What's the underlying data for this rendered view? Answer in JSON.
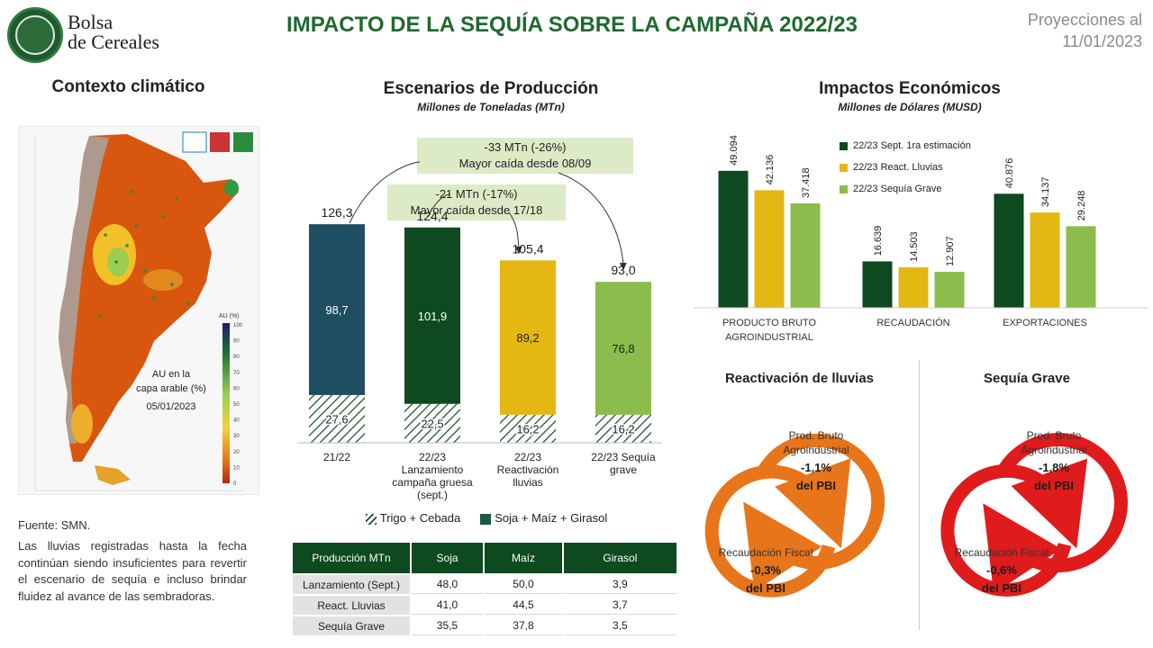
{
  "header": {
    "logo_line1": "Bolsa",
    "logo_line2": "de Cereales",
    "title": "IMPACTO DE LA SEQUÍA SOBRE LA CAMPAÑA 2022/23",
    "projection_line1": "Proyecciones al",
    "projection_line2": "11/01/2023"
  },
  "climate": {
    "title": "Contexto climático",
    "map_legend_title": "AU (%)",
    "map_label_line1": "AU en la",
    "map_label_line2": "capa arable (%)",
    "map_label_date": "05/01/2023",
    "map_scale_ticks": [
      "100",
      "90",
      "80",
      "70",
      "60",
      "50",
      "40",
      "30",
      "20",
      "10",
      "0"
    ],
    "source": "Fuente: SMN.",
    "text": "Las lluvias registradas hasta la fecha continúan siendo insuficientes para revertir el escenario de sequía e incluso brindar fluidez al avance de las sembradoras."
  },
  "production": {
    "title": "Escenarios de Producción",
    "subtitle": "Millones de Toneladas (MTn)",
    "callout1_line1": "-33 MTn (-26%)",
    "callout1_line2": "Mayor caída desde 08/09",
    "callout2_line1": "-21 MTn (-17%)",
    "callout2_line2": "Mayor caída desde 17/18",
    "legend_wheat": "Trigo + Cebada",
    "legend_soy": "Soja + Maíz + Girasol",
    "table": {
      "headers": [
        "Producción MTn",
        "Soja",
        "Maíz",
        "Girasol"
      ],
      "rows": [
        [
          "Lanzamiento (Sept.)",
          "48,0",
          "50,0",
          "3,9"
        ],
        [
          "React. Lluvias",
          "41,0",
          "44,5",
          "3,7"
        ],
        [
          "Sequía Grave",
          "35,5",
          "37,8",
          "3,5"
        ]
      ]
    }
  },
  "economic": {
    "title": "Impactos Económicos",
    "subtitle": "Millones de Dólares (MUSD)",
    "legend": [
      "22/23 Sept. 1ra estimación",
      "22/23 React. Lluvias",
      "22/23 Sequía Grave"
    ],
    "scenario1": {
      "title": "Reactivación de lluvias",
      "ring1_line1": "Prod. Bruto",
      "ring1_line2": "Agroindustrial",
      "ring1_value": "-1,1%",
      "ring1_unit": "del PBI",
      "ring2_line1": "Recaudación Fiscal",
      "ring2_value": "-0,3%",
      "ring2_unit": "del PBI"
    },
    "scenario2": {
      "title": "Sequía Grave",
      "ring1_line1": "Prod. Bruto",
      "ring1_line2": "Agroindustrial",
      "ring1_value": "-1,8%",
      "ring1_unit": "del PBI",
      "ring2_line1": "Recaudación Fiscal",
      "ring2_value": "-0,6%",
      "ring2_unit": "del PBI"
    }
  },
  "colors": {
    "title_green": "#1f6a2f",
    "bar_2122": "#1f4e62",
    "bar_launch": "#0d4a1f",
    "bar_react": "#e5b712",
    "bar_drought": "#8cbc4c",
    "ring_react": "#e8751a",
    "ring_drought": "#e01b1b"
  },
  "chart_data": [
    {
      "type": "bar",
      "stacked": true,
      "title": "Escenarios de Producción",
      "ylabel": "Millones de Toneladas (MTn)",
      "categories": [
        "21/22",
        "22/23 Lanzamiento campaña gruesa (sept.)",
        "22/23 Reactivación lluvias",
        "22/23 Sequía grave"
      ],
      "category_lines": [
        [
          "21/22"
        ],
        [
          "22/23",
          "Lanzamiento",
          "campaña gruesa",
          "(sept.)"
        ],
        [
          "22/23",
          "Reactivación",
          "lluvias"
        ],
        [
          "22/23 Sequía",
          "grave"
        ]
      ],
      "series": [
        {
          "name": "Trigo + Cebada",
          "values": [
            27.6,
            22.5,
            16.2,
            16.2
          ],
          "labels": [
            "27,6",
            "22,5",
            "16,2",
            "16,2"
          ]
        },
        {
          "name": "Soja + Maíz + Girasol",
          "values": [
            98.7,
            101.9,
            89.2,
            76.8
          ],
          "labels": [
            "98,7",
            "101,9",
            "89,2",
            "76,8"
          ]
        }
      ],
      "totals": [
        126.3,
        124.4,
        105.4,
        93.0
      ],
      "total_labels": [
        "126,3",
        "124,4",
        "105,4",
        "93,0"
      ],
      "ylim": [
        0,
        130
      ],
      "legend": "bottom"
    },
    {
      "type": "bar",
      "title": "Impactos Económicos",
      "ylabel": "Millones de Dólares (MUSD)",
      "categories": [
        "PRODUCTO BRUTO AGROINDUSTRIAL",
        "RECAUDACIÓN",
        "EXPORTACIONES"
      ],
      "category_lines": [
        [
          "PRODUCTO BRUTO",
          "AGROINDUSTRIAL"
        ],
        [
          "RECAUDACIÓN"
        ],
        [
          "EXPORTACIONES"
        ]
      ],
      "series": [
        {
          "name": "22/23 Sept. 1ra estimación",
          "values": [
            49094,
            16639,
            40876
          ],
          "labels": [
            "49.094",
            "16.639",
            "40.876"
          ]
        },
        {
          "name": "22/23 React. Lluvias",
          "values": [
            42136,
            14503,
            34137
          ],
          "labels": [
            "42.136",
            "14.503",
            "34.137"
          ]
        },
        {
          "name": "22/23 Sequía Grave",
          "values": [
            37418,
            12907,
            29248
          ],
          "labels": [
            "37.418",
            "12.907",
            "29.248"
          ]
        }
      ],
      "ylim": [
        0,
        50000
      ],
      "legend": "top-right"
    }
  ]
}
